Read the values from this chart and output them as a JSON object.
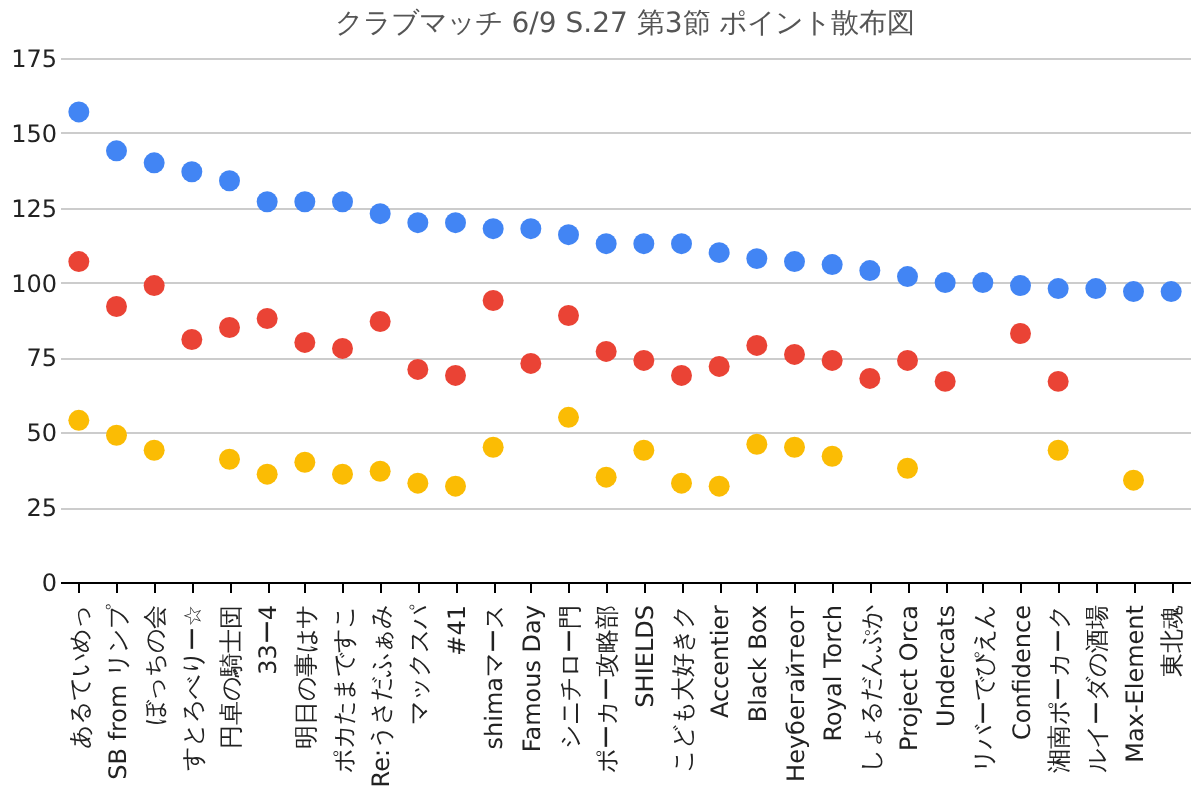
{
  "chart_data": {
    "type": "scatter",
    "title": "クラブマッチ 6/9 S.27 第3節 ポイント散布図",
    "categories": [
      "あるていめっ",
      "SB from リンプ",
      "ぼっちの会",
      "すとろべりー☆",
      "円卓の騎士団",
      "33ー4",
      "明日の事はサ",
      "ポカたまですこ",
      "Re:うさだふぁみ",
      "マックスパ",
      "#41",
      "shimaマース",
      "Famous Day",
      "シニチロー門",
      "ポーカー攻略部",
      "SHIELDS",
      "こども大好きク",
      "Accentier",
      "Black Box",
      "Неубегайтеот",
      "Royal Torch",
      "しょるだんぷか",
      "Project Orca",
      "Undercats",
      "リバーでぴえん",
      "Confidence",
      "湘南ポーカーク",
      "ルイーダの酒場",
      "Max-Element",
      "東北魂"
    ],
    "series": [
      {
        "color": "#4285f4",
        "values": [
          157,
          144,
          140,
          137,
          134,
          127,
          127,
          127,
          123,
          120,
          120,
          118,
          118,
          116,
          113,
          113,
          113,
          110,
          108,
          107,
          106,
          104,
          102,
          100,
          100,
          99,
          98,
          98,
          97,
          97
        ]
      },
      {
        "color": "#ea4335",
        "values": [
          107,
          92,
          99,
          81,
          85,
          88,
          80,
          78,
          87,
          71,
          69,
          94,
          73,
          89,
          77,
          74,
          69,
          72,
          79,
          76,
          74,
          68,
          74,
          67,
          null,
          83,
          67,
          null,
          null,
          null
        ]
      },
      {
        "color": "#fbbc04",
        "values": [
          54,
          49,
          44,
          null,
          41,
          36,
          40,
          36,
          37,
          33,
          32,
          45,
          null,
          55,
          35,
          44,
          33,
          32,
          46,
          45,
          42,
          null,
          38,
          null,
          null,
          null,
          44,
          null,
          34,
          null
        ]
      }
    ],
    "ylim": [
      0,
      175
    ],
    "yticks": [
      0,
      25,
      50,
      75,
      100,
      125,
      150,
      175
    ],
    "grid": "y",
    "legend": false,
    "marker": "circle"
  }
}
